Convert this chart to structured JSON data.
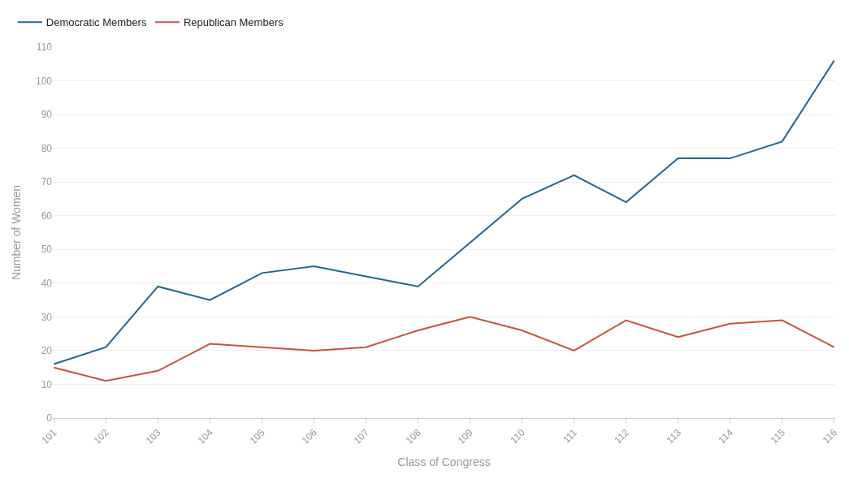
{
  "chart_data": {
    "type": "line",
    "xlabel": "Class of Congress",
    "ylabel": "Number of Women",
    "categories": [
      "101",
      "102",
      "103",
      "104",
      "105",
      "106",
      "107",
      "108",
      "109",
      "110",
      "111",
      "112",
      "113",
      "114",
      "115",
      "116"
    ],
    "series": [
      {
        "name": "Democratic Members",
        "color": "#23668f",
        "values": [
          16,
          21,
          39,
          35,
          43,
          45,
          42,
          39,
          52,
          65,
          72,
          64,
          77,
          77,
          82,
          106
        ]
      },
      {
        "name": "Republican Members",
        "color": "#c9533e",
        "values": [
          15,
          11,
          14,
          22,
          21,
          20,
          21,
          26,
          30,
          26,
          20,
          29,
          24,
          28,
          29,
          21
        ]
      }
    ],
    "ylim": [
      0,
      110
    ],
    "yticks": [
      0,
      10,
      20,
      30,
      40,
      50,
      60,
      70,
      80,
      90,
      100,
      110
    ],
    "grid": "y",
    "legend": "top left",
    "marker": "none",
    "line_style": "solid"
  }
}
